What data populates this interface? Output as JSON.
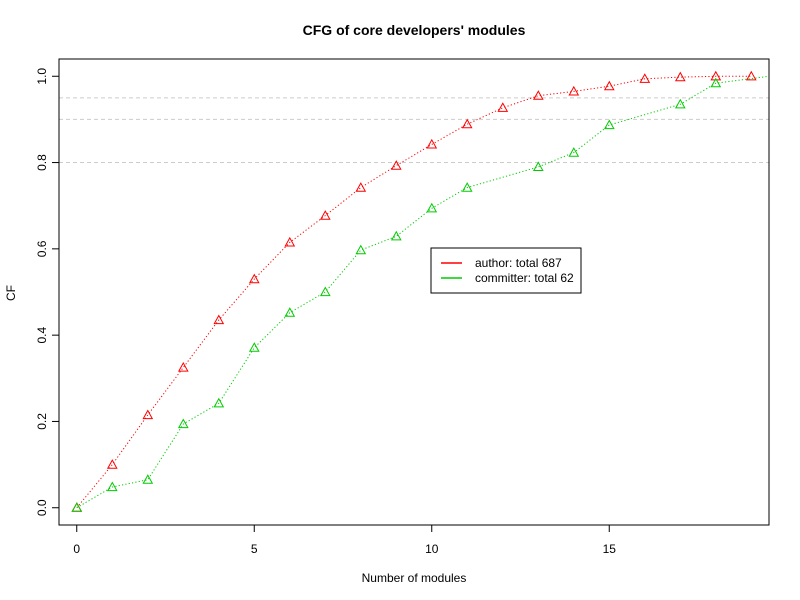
{
  "chart_data": {
    "type": "line",
    "title": "CFG of core developers' modules",
    "xlabel": "Number of modules",
    "ylabel": "CF",
    "xlim": [
      -0.5,
      19.5
    ],
    "ylim": [
      -0.04,
      1.04
    ],
    "x_ticks": [
      0,
      5,
      10,
      15
    ],
    "x_tick_labels": [
      "0",
      "5",
      "10",
      "15"
    ],
    "y_ticks": [
      0.0,
      0.2,
      0.4,
      0.6,
      0.8,
      1.0
    ],
    "y_tick_labels": [
      "0.0",
      "0.2",
      "0.4",
      "0.6",
      "0.8",
      "1.0"
    ],
    "reference_lines": [
      0.8,
      0.9,
      0.95
    ],
    "legend_position": "center-right",
    "series": [
      {
        "name": "author: total 687",
        "color": "#ff0000",
        "marker": "triangle",
        "line_style": "dotted",
        "x": [
          0,
          1,
          2,
          3,
          4,
          5,
          6,
          7,
          8,
          9,
          10,
          11,
          12,
          13,
          14,
          15,
          16,
          17,
          18,
          19
        ],
        "values": [
          0.0,
          0.1,
          0.215,
          0.325,
          0.435,
          0.53,
          0.615,
          0.677,
          0.742,
          0.793,
          0.842,
          0.889,
          0.927,
          0.955,
          0.965,
          0.977,
          0.994,
          0.998,
          1.0,
          1.0
        ]
      },
      {
        "name": "committer: total 62",
        "color": "#00cc00",
        "marker": "triangle",
        "line_style": "dotted",
        "x": [
          0,
          1,
          2,
          3,
          4,
          5,
          6,
          7,
          8,
          9,
          10,
          11,
          13,
          14,
          15,
          17,
          18,
          19.5
        ],
        "markers_at": [
          0,
          1,
          2,
          3,
          4,
          5,
          6,
          7,
          8,
          9,
          10,
          11,
          13,
          14,
          15,
          17,
          18
        ],
        "values": [
          0.0,
          0.048,
          0.065,
          0.194,
          0.242,
          0.371,
          0.452,
          0.5,
          0.597,
          0.629,
          0.694,
          0.742,
          0.79,
          0.823,
          0.887,
          0.935,
          0.984,
          1.0
        ]
      }
    ]
  }
}
